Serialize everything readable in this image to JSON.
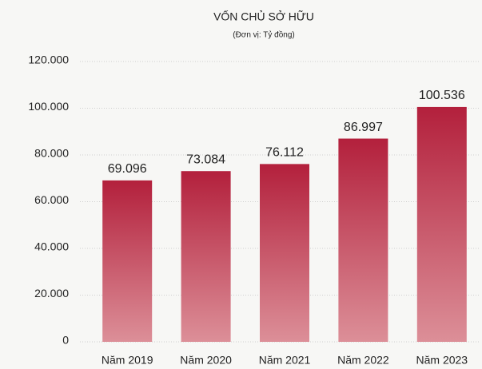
{
  "chart_data": {
    "type": "bar",
    "title": "VỐN CHỦ SỞ HỮU",
    "subtitle": "(Đơn vị: Tỷ đồng)",
    "categories": [
      "Năm 2019",
      "Năm 2020",
      "Năm 2021",
      "Năm 2022",
      "Năm 2023"
    ],
    "values": [
      69096,
      73084,
      76112,
      86997,
      100536
    ],
    "value_labels": [
      "69.096",
      "73.084",
      "76.112",
      "86.997",
      "100.536"
    ],
    "color": "#b3203c",
    "ylim": [
      0,
      120000
    ],
    "yticks": [
      0,
      {
        "value": 20000,
        "label": "20.000"
      },
      {
        "value": 40000,
        "label": "40.000"
      },
      {
        "value": 60000,
        "label": "60.000"
      },
      {
        "value": 80000,
        "label": "80.000"
      },
      {
        "value": 100000,
        "label": "100.000"
      },
      {
        "value": 120000,
        "label": "120.000"
      }
    ],
    "grid": true
  }
}
